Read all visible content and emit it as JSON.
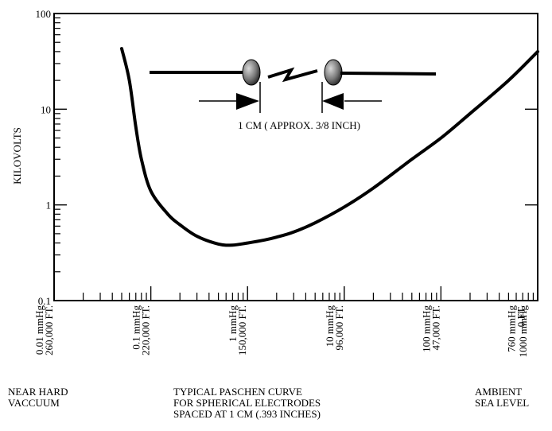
{
  "chart_data": {
    "type": "line",
    "title": "",
    "ylabel": "KILOVOLTS",
    "xlabel": "",
    "x_scale": "log",
    "y_scale": "log",
    "xlim": [
      0.01,
      1000
    ],
    "ylim": [
      0.1,
      100
    ],
    "y_ticks": [
      "100",
      "10",
      "1",
      "0.1"
    ],
    "x_ticks": [
      {
        "pressure": "0.01 mmHg",
        "altitude": "260,000 FT."
      },
      {
        "pressure": "0.1 mmHg",
        "altitude": "220,000 FT."
      },
      {
        "pressure": "1 mmHg",
        "altitude": "150,000 FT."
      },
      {
        "pressure": "10 mmHg",
        "altitude": "96,000 FT."
      },
      {
        "pressure": "100 mmHg",
        "altitude": "47,000 FT."
      },
      {
        "pressure": "760 mmHg",
        "altitude": "0 FT."
      },
      {
        "pressure": "1000 mmHg",
        "altitude": ""
      }
    ],
    "series": [
      {
        "x": [
          0.05,
          0.06,
          0.07,
          0.08,
          0.1,
          0.15,
          0.2,
          0.3,
          0.5,
          0.7,
          1,
          1.5,
          2,
          3,
          5,
          10,
          20,
          50,
          100,
          200,
          500,
          1000
        ],
        "y": [
          43,
          20,
          6.5,
          3,
          1.4,
          0.8,
          0.62,
          0.47,
          0.39,
          0.38,
          0.4,
          0.43,
          0.46,
          0.52,
          0.65,
          0.95,
          1.5,
          3,
          5,
          9,
          20,
          40
        ]
      }
    ],
    "grid": false,
    "legend": "none"
  },
  "inset": {
    "gap_label": "1 CM ( APPROX. 3/8 INCH)"
  },
  "captions": {
    "left": [
      "NEAR HARD",
      "VACCUUM"
    ],
    "center": [
      "TYPICAL PASCHEN CURVE",
      "FOR SPHERICAL ELECTRODES",
      "SPACED AT 1 CM (.393 INCHES)"
    ],
    "right": [
      "AMBIENT",
      "SEA LEVEL"
    ]
  }
}
